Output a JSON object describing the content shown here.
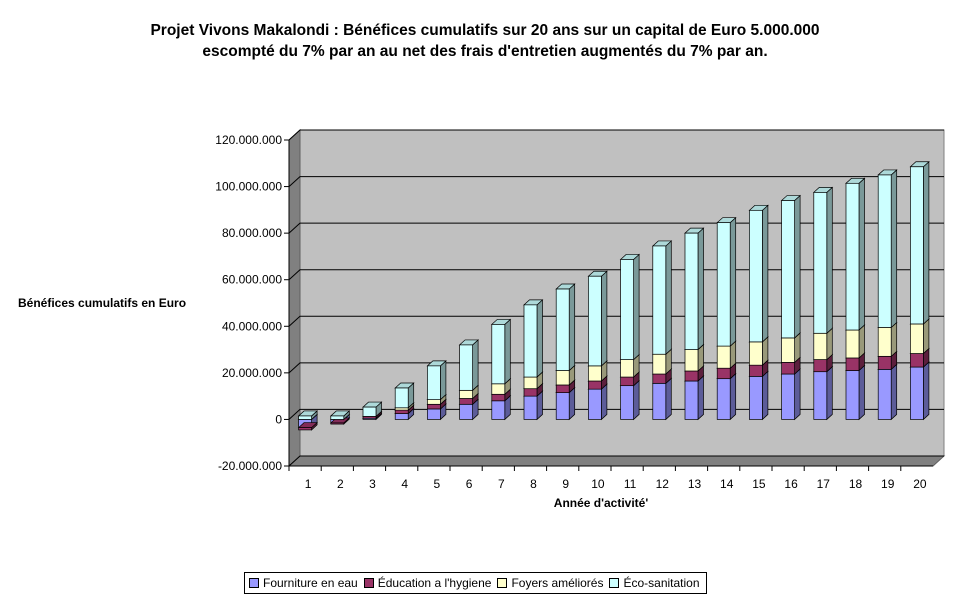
{
  "chart_data": {
    "type": "bar",
    "stacked": true,
    "title_lines": [
      "Projet Vivons Makalondi : Bénéfices cumulatifs sur 20 ans sur un capital de Euro 5.000.000",
      "escompté du 7% par an au net des frais d'entretien augmentés du 7% par an."
    ],
    "xlabel": "Année d'activité'",
    "ylabel": "Bénéfices cumulatifs en Euro",
    "ylim": [
      -20000000,
      120000000
    ],
    "yticks": [
      120000000,
      100000000,
      80000000,
      60000000,
      40000000,
      20000000,
      0,
      -20000000
    ],
    "ytick_labels": [
      "120.000.000",
      "100.000.000",
      "80.000.000",
      "60.000.000",
      "40.000.000",
      "20.000.000",
      "0",
      "-20.000.000"
    ],
    "categories": [
      "1",
      "2",
      "3",
      "4",
      "5",
      "6",
      "7",
      "8",
      "9",
      "10",
      "11",
      "12",
      "13",
      "14",
      "15",
      "16",
      "17",
      "18",
      "19",
      "20"
    ],
    "grid": true,
    "legend_position": "bottom",
    "series": [
      {
        "name": "Fourniture en eau",
        "color": "#9999ff",
        "values": [
          -3500000,
          -1500000,
          500000,
          2500000,
          4500000,
          6500000,
          8000000,
          10000000,
          11500000,
          13000000,
          14500000,
          15500000,
          16500000,
          17500000,
          18500000,
          19500000,
          20500000,
          21000000,
          21500000,
          22500000
        ]
      },
      {
        "name": "Éducation a l'hygiene",
        "color": "#993366",
        "values": [
          -1000000,
          -500000,
          800000,
          1500000,
          2000000,
          2500000,
          2800000,
          3200000,
          3300000,
          3500000,
          3700000,
          4000000,
          4300000,
          4500000,
          4800000,
          5000000,
          5200000,
          5400000,
          5600000,
          5800000
        ]
      },
      {
        "name": "Foyers améliorés",
        "color": "#ffffcc",
        "values": [
          0,
          0,
          0,
          1000000,
          2000000,
          3500000,
          4500000,
          5000000,
          6200000,
          6500000,
          7500000,
          8500000,
          9200000,
          9500000,
          10000000,
          10500000,
          11300000,
          12000000,
          12400000,
          12700000
        ]
      },
      {
        "name": "Éco-sanitation",
        "color": "#ccffff",
        "values": [
          1500000,
          1500000,
          4000000,
          8500000,
          14500000,
          19500000,
          25500000,
          31000000,
          35000000,
          38500000,
          43000000,
          46500000,
          50000000,
          53000000,
          56500000,
          59000000,
          60500000,
          63000000,
          65500000,
          67500000
        ]
      }
    ]
  }
}
